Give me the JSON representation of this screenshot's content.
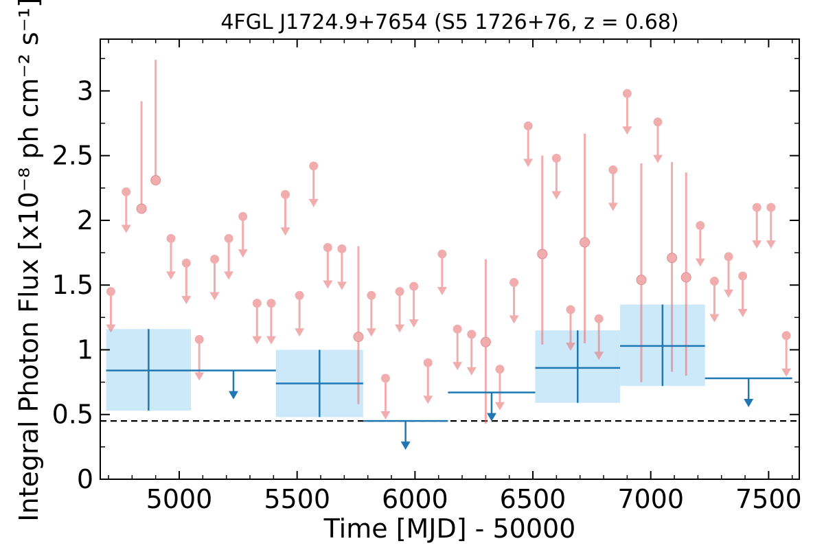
{
  "chart_data": {
    "type": "scatter",
    "title": "4FGL J1724.9+7654 (S5 1726+76, z = 0.68)",
    "xlabel": "Time [MJD] - 50000",
    "ylabel": "Integral Photon Flux [x10⁻⁸ ph cm⁻² s⁻¹]",
    "xlim": [
      4665,
      7630
    ],
    "ylim": [
      0,
      3.4
    ],
    "xticks": [
      5000,
      5500,
      6000,
      6500,
      7000,
      7500
    ],
    "yticks": [
      0,
      0.5,
      1,
      1.5,
      2,
      2.5,
      3
    ],
    "ytick_labels": [
      "0",
      "0.5",
      "1",
      "1.5",
      "2",
      "2.5",
      "3"
    ],
    "reference_line": {
      "y": 0.45,
      "style": "dashed",
      "color": "#000000"
    },
    "colors": {
      "short_bins": "#e8777a",
      "long_bins": "#1f77b4",
      "long_bins_band": "#cce9fa"
    },
    "series": [
      {
        "points": [
          {
            "x": 4840,
            "y": 2.09,
            "yerr_lo": 2.09,
            "yerr_hi": 2.92
          },
          {
            "x": 4900,
            "y": 2.31,
            "yerr_lo": 2.31,
            "yerr_hi": 3.24
          },
          {
            "x": 5760,
            "y": 1.1,
            "yerr_lo": 0.58,
            "yerr_hi": 1.8
          },
          {
            "x": 6300,
            "y": 1.06,
            "yerr_lo": 0.43,
            "yerr_hi": 1.7
          },
          {
            "x": 6540,
            "y": 1.74,
            "yerr_lo": 1.04,
            "yerr_hi": 2.5
          },
          {
            "x": 6720,
            "y": 1.83,
            "yerr_lo": 1.05,
            "yerr_hi": 2.67
          },
          {
            "x": 6960,
            "y": 1.54,
            "yerr_lo": 0.75,
            "yerr_hi": 2.44
          },
          {
            "x": 7090,
            "y": 1.71,
            "yerr_lo": 0.83,
            "yerr_hi": 2.45
          },
          {
            "x": 7150,
            "y": 1.56,
            "yerr_lo": 0.8,
            "yerr_hi": 2.37
          }
        ],
        "upper_limits": [
          {
            "x": 4710,
            "y": 1.45
          },
          {
            "x": 4775,
            "y": 2.22
          },
          {
            "x": 4965,
            "y": 1.86
          },
          {
            "x": 5030,
            "y": 1.67
          },
          {
            "x": 5085,
            "y": 1.08
          },
          {
            "x": 5150,
            "y": 1.7
          },
          {
            "x": 5210,
            "y": 1.86
          },
          {
            "x": 5270,
            "y": 2.03
          },
          {
            "x": 5330,
            "y": 1.36
          },
          {
            "x": 5390,
            "y": 1.36
          },
          {
            "x": 5450,
            "y": 2.2
          },
          {
            "x": 5510,
            "y": 1.42
          },
          {
            "x": 5570,
            "y": 2.42
          },
          {
            "x": 5630,
            "y": 1.79
          },
          {
            "x": 5690,
            "y": 1.78
          },
          {
            "x": 5815,
            "y": 1.42
          },
          {
            "x": 5875,
            "y": 0.78
          },
          {
            "x": 5935,
            "y": 1.45
          },
          {
            "x": 5995,
            "y": 1.49
          },
          {
            "x": 6055,
            "y": 0.9
          },
          {
            "x": 6115,
            "y": 1.74
          },
          {
            "x": 6180,
            "y": 1.16
          },
          {
            "x": 6240,
            "y": 1.12
          },
          {
            "x": 6360,
            "y": 0.85
          },
          {
            "x": 6420,
            "y": 1.52
          },
          {
            "x": 6480,
            "y": 2.73
          },
          {
            "x": 6600,
            "y": 2.48
          },
          {
            "x": 6660,
            "y": 1.31
          },
          {
            "x": 6780,
            "y": 1.24
          },
          {
            "x": 6840,
            "y": 2.39
          },
          {
            "x": 6900,
            "y": 2.98
          },
          {
            "x": 7030,
            "y": 2.76
          },
          {
            "x": 7210,
            "y": 1.96
          },
          {
            "x": 7270,
            "y": 1.53
          },
          {
            "x": 7330,
            "y": 1.72
          },
          {
            "x": 7390,
            "y": 1.57
          },
          {
            "x": 7450,
            "y": 2.1
          },
          {
            "x": 7510,
            "y": 2.1
          },
          {
            "x": 7575,
            "y": 1.11
          }
        ]
      },
      {
        "bins": [
          {
            "x0": 4690,
            "x1": 5050,
            "y": 0.84,
            "y_lo": 0.53,
            "y_hi": 1.16
          },
          {
            "x0": 5410,
            "x1": 5780,
            "y": 0.74,
            "y_lo": 0.48,
            "y_hi": 1.0
          },
          {
            "x0": 6510,
            "x1": 6870,
            "y": 0.86,
            "y_lo": 0.59,
            "y_hi": 1.15
          },
          {
            "x0": 6870,
            "x1": 7230,
            "y": 1.03,
            "y_lo": 0.72,
            "y_hi": 1.35
          }
        ],
        "upper_limits": [
          {
            "x0": 5050,
            "x1": 5410,
            "y": 0.84
          },
          {
            "x0": 5780,
            "x1": 6140,
            "y": 0.45
          },
          {
            "x0": 6140,
            "x1": 6510,
            "y": 0.67
          },
          {
            "x0": 7230,
            "x1": 7600,
            "y": 0.78
          }
        ]
      }
    ]
  }
}
